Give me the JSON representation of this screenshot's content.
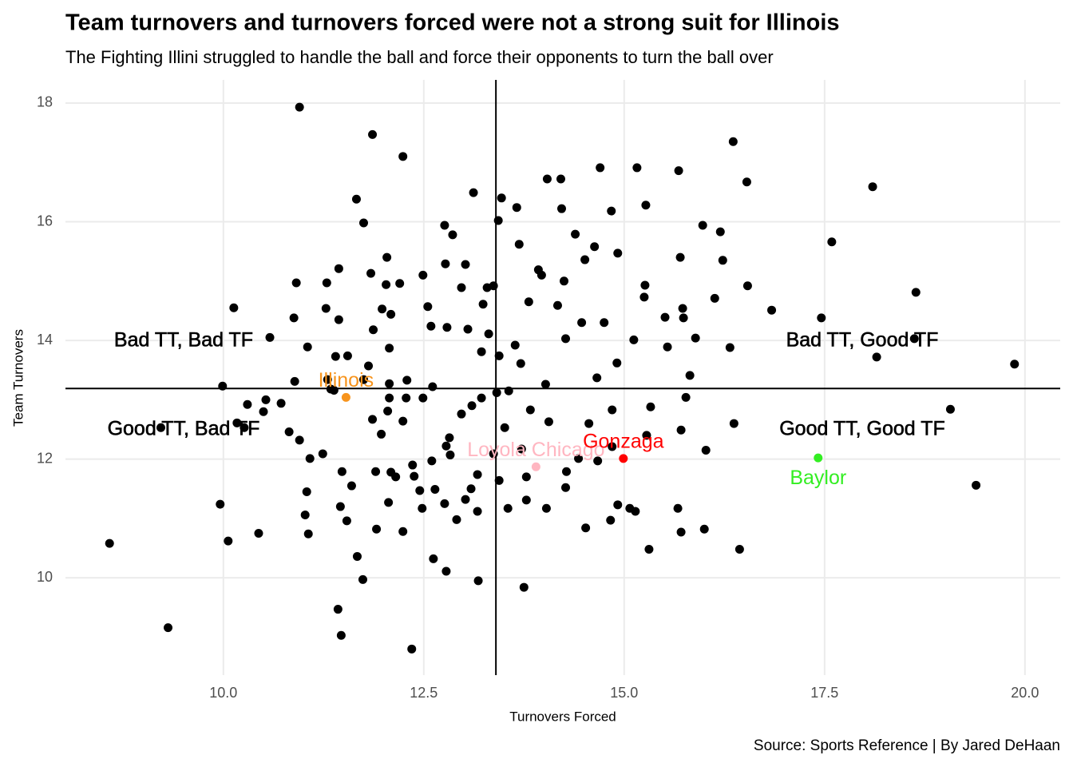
{
  "chart_data": {
    "type": "scatter",
    "title": "Team turnovers and turnovers forced were not a strong suit for Illinois",
    "subtitle": "The Fighting Illini struggled to handle the ball and force their opponents to turn the ball over",
    "caption": "Source: Sports Reference | By Jared DeHaan",
    "xlabel": "Turnovers Forced",
    "ylabel": "Team Turnovers",
    "xlim": [
      8.03,
      20.44
    ],
    "ylim": [
      8.36,
      18.39
    ],
    "xticks": [
      {
        "value": 10,
        "label": "10.0"
      },
      12.5,
      {
        "value": 15,
        "label": "15.0"
      },
      17.5,
      {
        "value": 20,
        "label": "20.0"
      }
    ],
    "yticks": [
      10,
      12,
      14,
      16,
      18
    ],
    "grid": true,
    "vline": 13.4,
    "hline": 13.19,
    "annotations": [
      "Bad TT, Bad TF",
      "Good TT, Bad TF",
      "Bad TT, Good TF",
      "Good TT, Good TF"
    ],
    "series": [
      {
        "color": "#000000",
        "x": [
          8.58,
          9.31,
          9.96,
          10.06,
          9.99,
          10.13,
          10.95,
          11.86,
          12.24,
          11.66,
          11.75,
          13.12,
          14.04,
          14.21,
          14.7,
          15.16,
          15.68,
          16.36,
          16.53,
          18.1,
          17.59,
          18.64,
          19.87,
          19.07,
          19.39,
          16.44,
          15.31,
          16.0,
          15.71,
          15.67,
          13.47,
          13.66,
          14.22,
          14.84,
          15.27,
          15.98,
          16.2,
          12.76,
          12.86,
          13.43,
          13.69,
          14.39,
          14.63,
          14.51,
          14.92,
          15.7,
          16.23,
          16.54,
          16.13,
          16.84,
          17.46,
          16.32,
          18.15,
          18.62,
          15.89,
          15.54,
          15.12,
          14.91,
          14.66,
          14.85,
          15.33,
          15.77,
          15.82,
          16.37,
          16.02,
          15.71,
          15.28,
          14.85,
          14.67,
          14.56,
          14.43,
          14.28,
          14.27,
          14.03,
          13.78,
          13.55,
          13.17,
          12.91,
          12.64,
          12.38,
          12.24,
          12.62,
          12.78,
          13.18,
          13.75,
          12.35,
          11.47,
          11.43,
          11.74,
          11.67,
          11.91,
          11.54,
          11.46,
          11.6,
          11.48,
          11.06,
          11.02,
          11.04,
          11.24,
          11.08,
          10.95,
          10.82,
          10.44,
          10.17,
          10.3,
          10.5,
          10.53,
          10.72,
          10.58,
          10.88,
          11.05,
          10.91,
          11.29,
          11.44,
          11.28,
          11.44,
          11.84,
          12.03,
          12.2,
          12.04,
          12.49,
          12.77,
          13.02,
          12.97,
          13.24,
          13.29,
          13.37,
          12.55,
          12.59,
          12.79,
          12.09,
          11.87,
          11.98,
          12.07,
          11.81,
          11.55,
          11.4,
          11.38,
          11.3,
          11.34,
          11.75,
          12.07,
          12.29,
          12.07,
          12.28,
          12.05,
          11.86,
          11.97,
          12.24,
          12.49,
          12.61,
          12.82,
          12.97,
          13.1,
          13.22,
          13.41,
          13.56,
          13.71,
          14.02,
          13.83,
          14.06,
          13.51,
          13.72,
          13.37,
          13.17,
          13.44,
          13.78,
          13.09,
          13.44,
          13.22,
          13.05,
          13.31,
          13.64,
          13.81,
          13.93,
          13.97,
          14.17,
          14.25,
          14.27,
          14.47,
          14.75,
          15.25,
          15.26,
          15.73,
          15.74,
          15.51,
          15.14,
          14.83,
          14.52,
          14.92,
          15.07,
          12.83,
          12.78,
          12.6,
          12.36,
          12.09,
          12.15,
          12.06,
          12.48,
          12.45,
          12.76,
          13.02,
          11.9,
          10.89,
          9.22,
          10.26
        ],
        "y": [
          10.58,
          9.16,
          11.24,
          10.62,
          13.23,
          14.55,
          17.93,
          17.47,
          17.1,
          16.38,
          15.98,
          16.49,
          16.72,
          16.72,
          16.91,
          16.91,
          16.86,
          17.35,
          16.67,
          16.59,
          15.66,
          14.81,
          13.6,
          12.84,
          11.56,
          10.48,
          10.48,
          10.82,
          10.77,
          11.17,
          16.4,
          16.24,
          16.22,
          16.18,
          16.28,
          15.94,
          15.83,
          15.94,
          15.78,
          16.02,
          15.62,
          15.79,
          15.58,
          15.36,
          15.47,
          15.4,
          15.35,
          14.92,
          14.71,
          14.51,
          14.38,
          13.88,
          13.72,
          14.03,
          14.04,
          13.89,
          14.01,
          13.62,
          13.37,
          12.83,
          12.88,
          13.04,
          13.41,
          12.6,
          12.15,
          12.49,
          12.4,
          12.21,
          11.97,
          12.6,
          12.01,
          11.79,
          11.52,
          11.17,
          11.31,
          11.17,
          11.12,
          10.98,
          11.49,
          11.71,
          10.78,
          10.32,
          10.11,
          9.95,
          9.84,
          8.8,
          9.03,
          9.47,
          9.97,
          10.36,
          10.82,
          10.96,
          11.2,
          11.55,
          11.79,
          10.74,
          11.06,
          11.45,
          12.09,
          12.01,
          12.32,
          12.46,
          10.75,
          12.61,
          12.92,
          12.8,
          13.0,
          12.94,
          14.05,
          14.38,
          13.89,
          14.97,
          14.97,
          15.21,
          14.54,
          14.35,
          15.13,
          14.94,
          14.96,
          15.4,
          15.1,
          15.29,
          15.28,
          14.89,
          14.61,
          14.89,
          14.92,
          14.57,
          14.24,
          14.22,
          14.44,
          14.18,
          14.53,
          13.87,
          13.57,
          13.74,
          13.73,
          13.16,
          13.34,
          13.18,
          13.34,
          13.27,
          13.33,
          13.03,
          13.03,
          12.81,
          12.67,
          12.42,
          12.64,
          13.03,
          13.22,
          12.36,
          12.76,
          12.9,
          13.03,
          13.12,
          13.15,
          13.61,
          13.26,
          12.83,
          12.63,
          12.53,
          12.17,
          12.09,
          11.74,
          11.64,
          11.7,
          11.5,
          13.74,
          13.81,
          14.19,
          14.11,
          13.92,
          14.65,
          15.19,
          15.1,
          14.59,
          15.0,
          14.03,
          14.3,
          14.3,
          14.73,
          14.93,
          14.54,
          14.38,
          14.39,
          11.12,
          10.97,
          10.84,
          11.23,
          11.17,
          12.07,
          12.22,
          11.97,
          11.9,
          11.78,
          11.7,
          11.27,
          11.17,
          11.47,
          11.25,
          11.32,
          11.79,
          13.31,
          12.53,
          12.53
        ]
      },
      {
        "name": "Illinois",
        "color": "#f7941d",
        "x": [
          11.53
        ],
        "y": [
          13.04
        ]
      },
      {
        "name": "Loyola Chicago",
        "color": "#ffb6c1",
        "x": [
          13.9
        ],
        "y": [
          11.87
        ]
      },
      {
        "name": "Gonzaga",
        "color": "#ff0000",
        "x": [
          14.99
        ],
        "y": [
          12.01
        ]
      },
      {
        "name": "Baylor",
        "color": "#33ee22",
        "x": [
          17.42
        ],
        "y": [
          12.02
        ]
      }
    ]
  }
}
